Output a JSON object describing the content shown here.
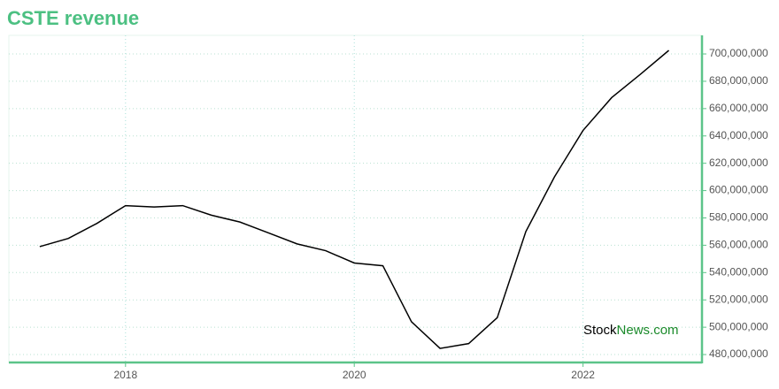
{
  "chart_data": {
    "type": "line",
    "title": "CSTE revenue",
    "watermark": {
      "first": "Stock",
      "second": "News.com"
    },
    "x": [
      2017.25,
      2017.5,
      2017.75,
      2018,
      2018.25,
      2018.5,
      2018.75,
      2019,
      2019.25,
      2019.5,
      2019.75,
      2020,
      2020.25,
      2020.5,
      2020.75,
      2021,
      2021.25,
      2021.5,
      2021.75,
      2022,
      2022.25,
      2022.5,
      2022.75
    ],
    "series": [
      {
        "name": "CSTE revenue",
        "color": "#000000",
        "values": [
          559000000,
          565000000,
          576000000,
          589000000,
          588000000,
          589000000,
          582000000,
          577000000,
          569000000,
          561000000,
          556000000,
          547000000,
          545000000,
          504000000,
          484500000,
          488000000,
          507000000,
          570000000,
          610000000,
          644000000,
          668000000,
          685000000,
          702600000
        ]
      }
    ],
    "xlim": [
      2016.98,
      2023.04
    ],
    "xticks": [
      2018,
      2020,
      2022
    ],
    "ylim": [
      474200000,
      713600000
    ],
    "yticks": [
      {
        "value": 480000000,
        "label": "480,000,000"
      },
      {
        "value": 500000000,
        "label": "500,000,000"
      },
      {
        "value": 520000000,
        "label": "520,000,000"
      },
      {
        "value": 540000000,
        "label": "540,000,000"
      },
      {
        "value": 560000000,
        "label": "560,000,000"
      },
      {
        "value": 580000000,
        "label": "580,000,000"
      },
      {
        "value": 600000000,
        "label": "600,000,000"
      },
      {
        "value": 620000000,
        "label": "620,000,000"
      },
      {
        "value": 640000000,
        "label": "640,000,000"
      },
      {
        "value": 660000000,
        "label": "660,000,000"
      },
      {
        "value": 680000000,
        "label": "680,000,000"
      },
      {
        "value": 700000000,
        "label": "700,000,000"
      }
    ],
    "grid": true,
    "axis_color": "#5cc489"
  }
}
